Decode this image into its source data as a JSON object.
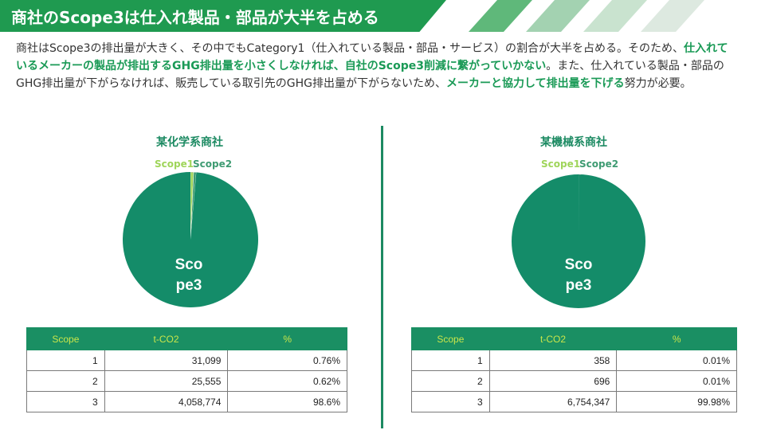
{
  "title": "商社のScope3は仕入れ製品・部品が大半を占める",
  "paragraph": {
    "part1": "商社はScope3の排出量が大きく、その中でもCategory1（仕入れている製品・部品・サービス）の割合が大半を占める。そのため、",
    "highlight1": "仕入れているメーカーの製品が排出するGHG排出量を小さくしなければ、自社のScope3削減に繋がっていかない",
    "part2": "。また、仕入れている製品・部品のGHG排出量が下がらなければ、販売している取引先のGHG排出量が下がらないため、",
    "highlight2": "メーカーと協力して排出量を下げる",
    "part3": "努力が必要。"
  },
  "colors": {
    "title_green": "#1f9a50",
    "pie_main": "#148c69",
    "scope1": "#9fd55a",
    "scope2": "#3e9b72",
    "header_text": "#c9e54a"
  },
  "left": {
    "company": "某化学系商社",
    "pie_labels": {
      "scope1": "Scope1",
      "scope2": "Scope2",
      "scope3_line1": "Sco",
      "scope3_line2": "pe3"
    },
    "pie_values": [
      31099,
      25555,
      4058774
    ],
    "table": {
      "headers": [
        "Scope",
        "t-CO2",
        "%"
      ],
      "rows": [
        [
          "1",
          "31,099",
          "0.76%"
        ],
        [
          "2",
          "25,555",
          "0.62%"
        ],
        [
          "3",
          "4,058,774",
          "98.6%"
        ]
      ]
    }
  },
  "right": {
    "company": "某機械系商社",
    "pie_labels": {
      "scope1": "Scope1",
      "scope2": "Scope2",
      "scope3_line1": "Sco",
      "scope3_line2": "pe3"
    },
    "pie_values": [
      358,
      696,
      6754347
    ],
    "table": {
      "headers": [
        "Scope",
        "t-CO2",
        "%"
      ],
      "rows": [
        [
          "1",
          "358",
          "0.01%"
        ],
        [
          "2",
          "696",
          "0.01%"
        ],
        [
          "3",
          "6,754,347",
          "99.98%"
        ]
      ]
    }
  }
}
